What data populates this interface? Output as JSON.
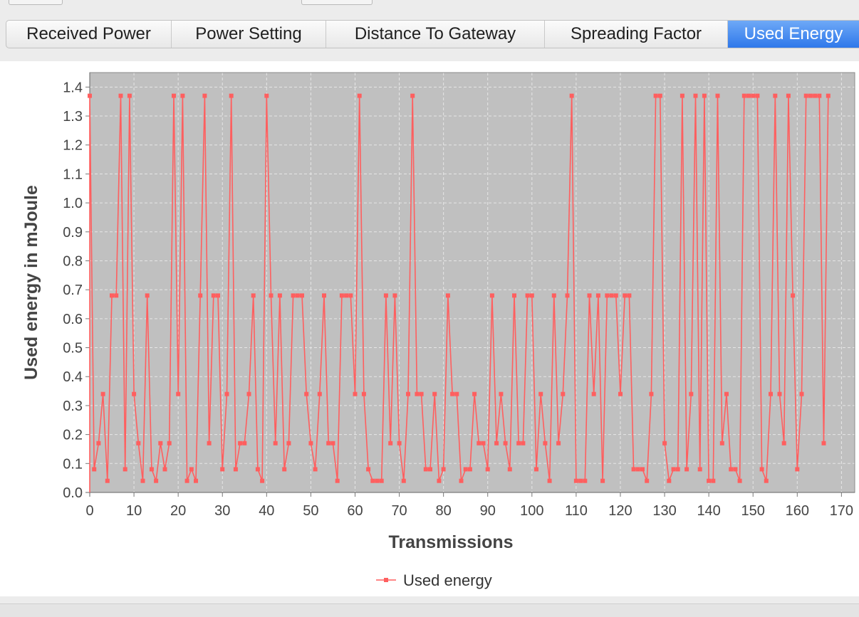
{
  "tabs": [
    {
      "label": "Received Power",
      "active": false
    },
    {
      "label": "Power Setting",
      "active": false
    },
    {
      "label": "Distance To Gateway",
      "active": false
    },
    {
      "label": "Spreading Factor",
      "active": false
    },
    {
      "label": "Used Energy",
      "active": true
    }
  ],
  "colors": {
    "accent": "#3a82ee",
    "series": "#ff5f5f",
    "plot_bg": "#c0c0c0",
    "grid": "#e6e6e6"
  },
  "chart_data": {
    "type": "line",
    "title": "",
    "xlabel": "Transmissions",
    "ylabel": "Used energy in mJoule",
    "xlim": [
      0,
      173
    ],
    "ylim": [
      0,
      1.45
    ],
    "x_ticks": [
      0,
      10,
      20,
      30,
      40,
      50,
      60,
      70,
      80,
      90,
      100,
      110,
      120,
      130,
      140,
      150,
      160,
      170
    ],
    "y_ticks": [
      0.0,
      0.1,
      0.2,
      0.3,
      0.4,
      0.5,
      0.6,
      0.7,
      0.8,
      0.9,
      1.0,
      1.1,
      1.2,
      1.3,
      1.4
    ],
    "grid": true,
    "legend_position": "bottom-center",
    "series": [
      {
        "name": "Used energy",
        "color": "#ff5f5f",
        "x_start": 0,
        "x_step": 1,
        "values": [
          1.37,
          0.08,
          0.17,
          0.34,
          0.04,
          0.68,
          0.68,
          1.37,
          0.08,
          1.37,
          0.34,
          0.17,
          0.04,
          0.68,
          0.08,
          0.04,
          0.17,
          0.08,
          0.17,
          1.37,
          0.34,
          1.37,
          0.04,
          0.08,
          0.04,
          0.68,
          1.37,
          0.17,
          0.68,
          0.68,
          0.08,
          0.34,
          1.37,
          0.08,
          0.17,
          0.17,
          0.34,
          0.68,
          0.08,
          0.04,
          1.37,
          0.68,
          0.17,
          0.68,
          0.08,
          0.17,
          0.68,
          0.68,
          0.68,
          0.34,
          0.17,
          0.08,
          0.34,
          0.68,
          0.17,
          0.17,
          0.04,
          0.68,
          0.68,
          0.68,
          0.34,
          1.37,
          0.34,
          0.08,
          0.04,
          0.04,
          0.04,
          0.68,
          0.17,
          0.68,
          0.17,
          0.04,
          0.34,
          1.37,
          0.34,
          0.34,
          0.08,
          0.08,
          0.34,
          0.04,
          0.08,
          0.68,
          0.34,
          0.34,
          0.04,
          0.08,
          0.08,
          0.34,
          0.17,
          0.17,
          0.08,
          0.68,
          0.17,
          0.34,
          0.17,
          0.08,
          0.68,
          0.17,
          0.17,
          0.68,
          0.68,
          0.08,
          0.34,
          0.17,
          0.04,
          0.68,
          0.17,
          0.34,
          0.68,
          1.37,
          0.04,
          0.04,
          0.04,
          0.68,
          0.34,
          0.68,
          0.04,
          0.68,
          0.68,
          0.68,
          0.34,
          0.68,
          0.68,
          0.08,
          0.08,
          0.08,
          0.04,
          0.34,
          1.37,
          1.37,
          0.17,
          0.04,
          0.08,
          0.08,
          1.37,
          0.08,
          0.34,
          1.37,
          0.08,
          1.37,
          0.04,
          0.04,
          1.37,
          0.17,
          0.34,
          0.08,
          0.08,
          0.04,
          1.37,
          1.37,
          1.37,
          1.37,
          0.08,
          0.04,
          0.34,
          1.37,
          0.34,
          0.17,
          1.37,
          0.68,
          0.08,
          0.34,
          1.37,
          1.37,
          1.37,
          1.37,
          0.17,
          1.37
        ]
      }
    ]
  }
}
